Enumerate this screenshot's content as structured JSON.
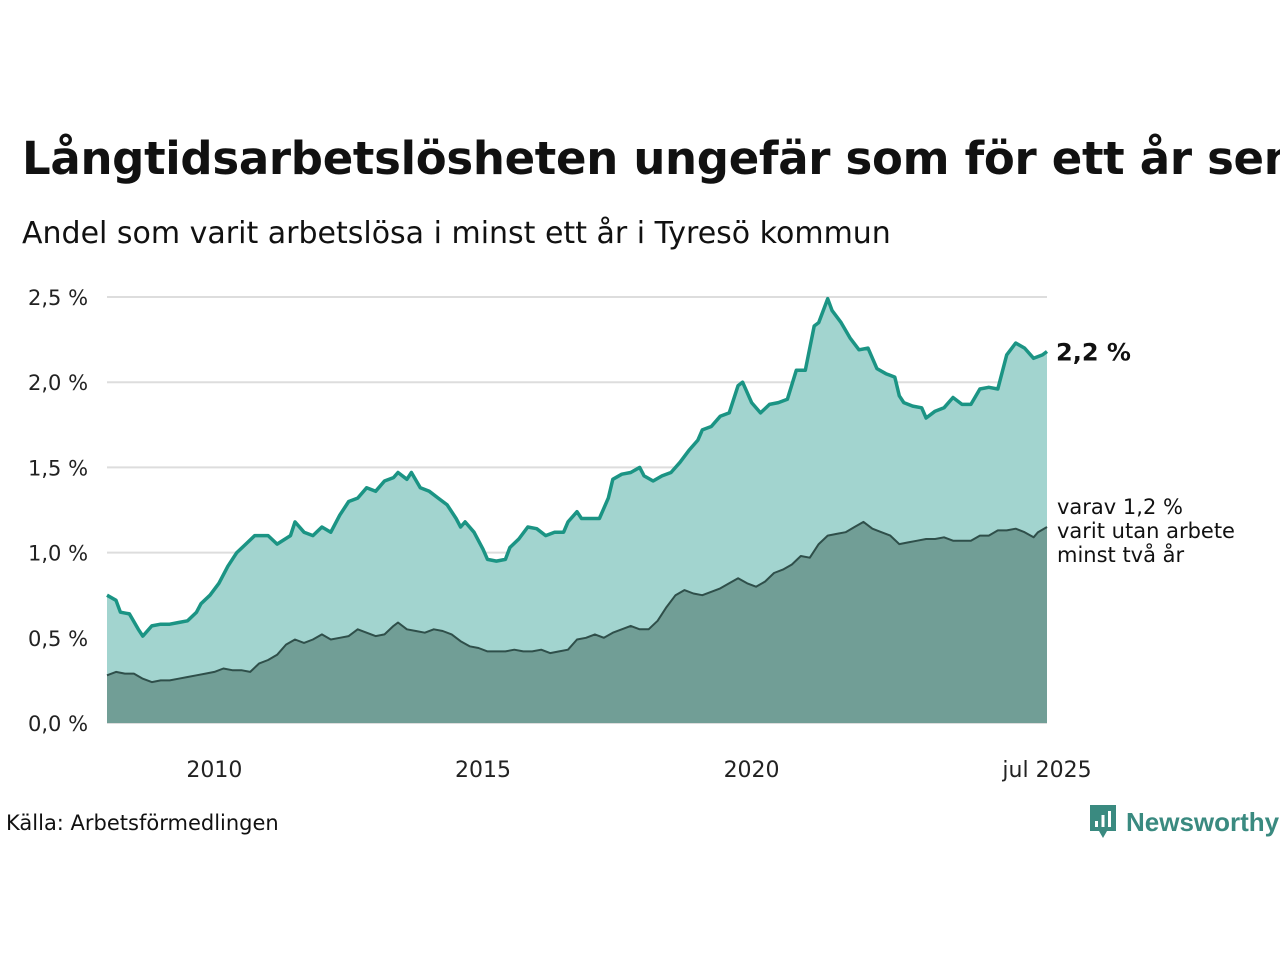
{
  "title": "Långtidsarbetslösheten ungefär som för ett år sen",
  "subtitle": "Andel som varit arbetslösa i minst ett år i Tyresö kommun",
  "source": "Källa: Arbetsförmedlingen",
  "brand": "Newsworthy",
  "colors": {
    "total_line": "#1b9484",
    "total_fill": "#a2d4cf",
    "sub_line": "#2f4f4a",
    "sub_fill": "#719e96",
    "grid": "#dddddd",
    "brand": "#3a8a80"
  },
  "chart_data": {
    "type": "area",
    "y_axis": {
      "ylim": [
        0,
        2.5
      ],
      "ticks": [
        0,
        0.5,
        1,
        1.5,
        2,
        2.5
      ],
      "tick_labels": [
        "0,0 %",
        "0,5 %",
        "1,0 %",
        "1,5 %",
        "2,0 %",
        "2,5 %"
      ]
    },
    "x_axis": {
      "xlim": [
        "2008-01",
        "2025-07"
      ],
      "ticks": [
        "2010-01",
        "2015-01",
        "2020-01",
        "2025-07"
      ],
      "tick_labels": [
        "2010",
        "2015",
        "2020",
        "jul 2025"
      ]
    },
    "grid": true,
    "series": [
      {
        "key": "total",
        "points": [
          [
            "2008-01",
            0.75
          ],
          [
            "2008-03",
            0.72
          ],
          [
            "2008-04",
            0.65
          ],
          [
            "2008-06",
            0.64
          ],
          [
            "2008-08",
            0.55
          ],
          [
            "2008-09",
            0.51
          ],
          [
            "2008-11",
            0.57
          ],
          [
            "2009-01",
            0.58
          ],
          [
            "2009-03",
            0.58
          ],
          [
            "2009-05",
            0.59
          ],
          [
            "2009-07",
            0.6
          ],
          [
            "2009-09",
            0.65
          ],
          [
            "2009-10",
            0.7
          ],
          [
            "2009-12",
            0.75
          ],
          [
            "2010-02",
            0.82
          ],
          [
            "2010-04",
            0.92
          ],
          [
            "2010-06",
            1.0
          ],
          [
            "2010-08",
            1.05
          ],
          [
            "2010-10",
            1.1
          ],
          [
            "2011-01",
            1.1
          ],
          [
            "2011-03",
            1.05
          ],
          [
            "2011-06",
            1.1
          ],
          [
            "2011-07",
            1.18
          ],
          [
            "2011-09",
            1.12
          ],
          [
            "2011-11",
            1.1
          ],
          [
            "2012-01",
            1.15
          ],
          [
            "2012-03",
            1.12
          ],
          [
            "2012-05",
            1.22
          ],
          [
            "2012-07",
            1.3
          ],
          [
            "2012-09",
            1.32
          ],
          [
            "2012-11",
            1.38
          ],
          [
            "2013-01",
            1.36
          ],
          [
            "2013-03",
            1.42
          ],
          [
            "2013-05",
            1.44
          ],
          [
            "2013-06",
            1.47
          ],
          [
            "2013-08",
            1.43
          ],
          [
            "2013-09",
            1.47
          ],
          [
            "2013-11",
            1.38
          ],
          [
            "2014-01",
            1.36
          ],
          [
            "2014-03",
            1.32
          ],
          [
            "2014-05",
            1.28
          ],
          [
            "2014-07",
            1.2
          ],
          [
            "2014-08",
            1.15
          ],
          [
            "2014-09",
            1.18
          ],
          [
            "2014-11",
            1.12
          ],
          [
            "2015-01",
            1.02
          ],
          [
            "2015-02",
            0.96
          ],
          [
            "2015-04",
            0.95
          ],
          [
            "2015-06",
            0.96
          ],
          [
            "2015-07",
            1.03
          ],
          [
            "2015-09",
            1.08
          ],
          [
            "2015-11",
            1.15
          ],
          [
            "2016-01",
            1.14
          ],
          [
            "2016-03",
            1.1
          ],
          [
            "2016-05",
            1.12
          ],
          [
            "2016-07",
            1.12
          ],
          [
            "2016-08",
            1.18
          ],
          [
            "2016-10",
            1.24
          ],
          [
            "2016-11",
            1.2
          ],
          [
            "2017-01",
            1.2
          ],
          [
            "2017-03",
            1.2
          ],
          [
            "2017-05",
            1.32
          ],
          [
            "2017-06",
            1.43
          ],
          [
            "2017-08",
            1.46
          ],
          [
            "2017-10",
            1.47
          ],
          [
            "2017-12",
            1.5
          ],
          [
            "2018-01",
            1.45
          ],
          [
            "2018-03",
            1.42
          ],
          [
            "2018-05",
            1.45
          ],
          [
            "2018-07",
            1.47
          ],
          [
            "2018-09",
            1.53
          ],
          [
            "2018-11",
            1.6
          ],
          [
            "2019-01",
            1.66
          ],
          [
            "2019-02",
            1.72
          ],
          [
            "2019-04",
            1.74
          ],
          [
            "2019-06",
            1.8
          ],
          [
            "2019-08",
            1.82
          ],
          [
            "2019-10",
            1.98
          ],
          [
            "2019-11",
            2.0
          ],
          [
            "2020-01",
            1.88
          ],
          [
            "2020-03",
            1.82
          ],
          [
            "2020-05",
            1.87
          ],
          [
            "2020-07",
            1.88
          ],
          [
            "2020-09",
            1.9
          ],
          [
            "2020-11",
            2.07
          ],
          [
            "2021-01",
            2.07
          ],
          [
            "2021-03",
            2.33
          ],
          [
            "2021-04",
            2.35
          ],
          [
            "2021-06",
            2.49
          ],
          [
            "2021-07",
            2.42
          ],
          [
            "2021-09",
            2.35
          ],
          [
            "2021-11",
            2.26
          ],
          [
            "2022-01",
            2.19
          ],
          [
            "2022-03",
            2.2
          ],
          [
            "2022-05",
            2.08
          ],
          [
            "2022-07",
            2.05
          ],
          [
            "2022-09",
            2.03
          ],
          [
            "2022-10",
            1.92
          ],
          [
            "2022-11",
            1.88
          ],
          [
            "2023-01",
            1.86
          ],
          [
            "2023-03",
            1.85
          ],
          [
            "2023-04",
            1.79
          ],
          [
            "2023-06",
            1.83
          ],
          [
            "2023-08",
            1.85
          ],
          [
            "2023-10",
            1.91
          ],
          [
            "2023-12",
            1.87
          ],
          [
            "2024-02",
            1.87
          ],
          [
            "2024-04",
            1.96
          ],
          [
            "2024-06",
            1.97
          ],
          [
            "2024-08",
            1.96
          ],
          [
            "2024-10",
            2.16
          ],
          [
            "2024-12",
            2.23
          ],
          [
            "2025-02",
            2.2
          ],
          [
            "2025-04",
            2.14
          ],
          [
            "2025-06",
            2.16
          ],
          [
            "2025-07",
            2.18
          ]
        ]
      },
      {
        "key": "sub",
        "points": [
          [
            "2008-01",
            0.28
          ],
          [
            "2008-03",
            0.3
          ],
          [
            "2008-05",
            0.29
          ],
          [
            "2008-07",
            0.29
          ],
          [
            "2008-09",
            0.26
          ],
          [
            "2008-11",
            0.24
          ],
          [
            "2009-01",
            0.25
          ],
          [
            "2009-03",
            0.25
          ],
          [
            "2009-05",
            0.26
          ],
          [
            "2009-07",
            0.27
          ],
          [
            "2009-09",
            0.28
          ],
          [
            "2009-11",
            0.29
          ],
          [
            "2010-01",
            0.3
          ],
          [
            "2010-03",
            0.32
          ],
          [
            "2010-05",
            0.31
          ],
          [
            "2010-07",
            0.31
          ],
          [
            "2010-09",
            0.3
          ],
          [
            "2010-11",
            0.35
          ],
          [
            "2011-01",
            0.37
          ],
          [
            "2011-03",
            0.4
          ],
          [
            "2011-05",
            0.46
          ],
          [
            "2011-07",
            0.49
          ],
          [
            "2011-09",
            0.47
          ],
          [
            "2011-11",
            0.49
          ],
          [
            "2012-01",
            0.52
          ],
          [
            "2012-03",
            0.49
          ],
          [
            "2012-05",
            0.5
          ],
          [
            "2012-07",
            0.51
          ],
          [
            "2012-09",
            0.55
          ],
          [
            "2012-11",
            0.53
          ],
          [
            "2013-01",
            0.51
          ],
          [
            "2013-03",
            0.52
          ],
          [
            "2013-05",
            0.57
          ],
          [
            "2013-06",
            0.59
          ],
          [
            "2013-08",
            0.55
          ],
          [
            "2013-10",
            0.54
          ],
          [
            "2013-12",
            0.53
          ],
          [
            "2014-02",
            0.55
          ],
          [
            "2014-04",
            0.54
          ],
          [
            "2014-06",
            0.52
          ],
          [
            "2014-08",
            0.48
          ],
          [
            "2014-10",
            0.45
          ],
          [
            "2014-12",
            0.44
          ],
          [
            "2015-02",
            0.42
          ],
          [
            "2015-04",
            0.42
          ],
          [
            "2015-06",
            0.42
          ],
          [
            "2015-08",
            0.43
          ],
          [
            "2015-10",
            0.42
          ],
          [
            "2015-12",
            0.42
          ],
          [
            "2016-02",
            0.43
          ],
          [
            "2016-04",
            0.41
          ],
          [
            "2016-06",
            0.42
          ],
          [
            "2016-08",
            0.43
          ],
          [
            "2016-10",
            0.49
          ],
          [
            "2016-12",
            0.5
          ],
          [
            "2017-02",
            0.52
          ],
          [
            "2017-04",
            0.5
          ],
          [
            "2017-06",
            0.53
          ],
          [
            "2017-08",
            0.55
          ],
          [
            "2017-10",
            0.57
          ],
          [
            "2017-12",
            0.55
          ],
          [
            "2018-02",
            0.55
          ],
          [
            "2018-04",
            0.6
          ],
          [
            "2018-06",
            0.68
          ],
          [
            "2018-08",
            0.75
          ],
          [
            "2018-10",
            0.78
          ],
          [
            "2018-12",
            0.76
          ],
          [
            "2019-02",
            0.75
          ],
          [
            "2019-04",
            0.77
          ],
          [
            "2019-06",
            0.79
          ],
          [
            "2019-08",
            0.82
          ],
          [
            "2019-10",
            0.85
          ],
          [
            "2019-12",
            0.82
          ],
          [
            "2020-02",
            0.8
          ],
          [
            "2020-04",
            0.83
          ],
          [
            "2020-06",
            0.88
          ],
          [
            "2020-08",
            0.9
          ],
          [
            "2020-10",
            0.93
          ],
          [
            "2020-12",
            0.98
          ],
          [
            "2021-02",
            0.97
          ],
          [
            "2021-04",
            1.05
          ],
          [
            "2021-06",
            1.1
          ],
          [
            "2021-08",
            1.11
          ],
          [
            "2021-10",
            1.12
          ],
          [
            "2021-12",
            1.15
          ],
          [
            "2022-02",
            1.18
          ],
          [
            "2022-04",
            1.14
          ],
          [
            "2022-06",
            1.12
          ],
          [
            "2022-08",
            1.1
          ],
          [
            "2022-10",
            1.05
          ],
          [
            "2022-12",
            1.06
          ],
          [
            "2023-02",
            1.07
          ],
          [
            "2023-04",
            1.08
          ],
          [
            "2023-06",
            1.08
          ],
          [
            "2023-08",
            1.09
          ],
          [
            "2023-10",
            1.07
          ],
          [
            "2023-12",
            1.07
          ],
          [
            "2024-02",
            1.07
          ],
          [
            "2024-04",
            1.1
          ],
          [
            "2024-06",
            1.1
          ],
          [
            "2024-08",
            1.13
          ],
          [
            "2024-10",
            1.13
          ],
          [
            "2024-12",
            1.14
          ],
          [
            "2025-02",
            1.12
          ],
          [
            "2025-04",
            1.09
          ],
          [
            "2025-05",
            1.12
          ],
          [
            "2025-07",
            1.15
          ]
        ]
      }
    ],
    "annotations": {
      "total_value": "2,2 %",
      "sub_lines": [
        "varav 1,2 %",
        "varit utan arbete",
        "minst två år"
      ]
    }
  }
}
